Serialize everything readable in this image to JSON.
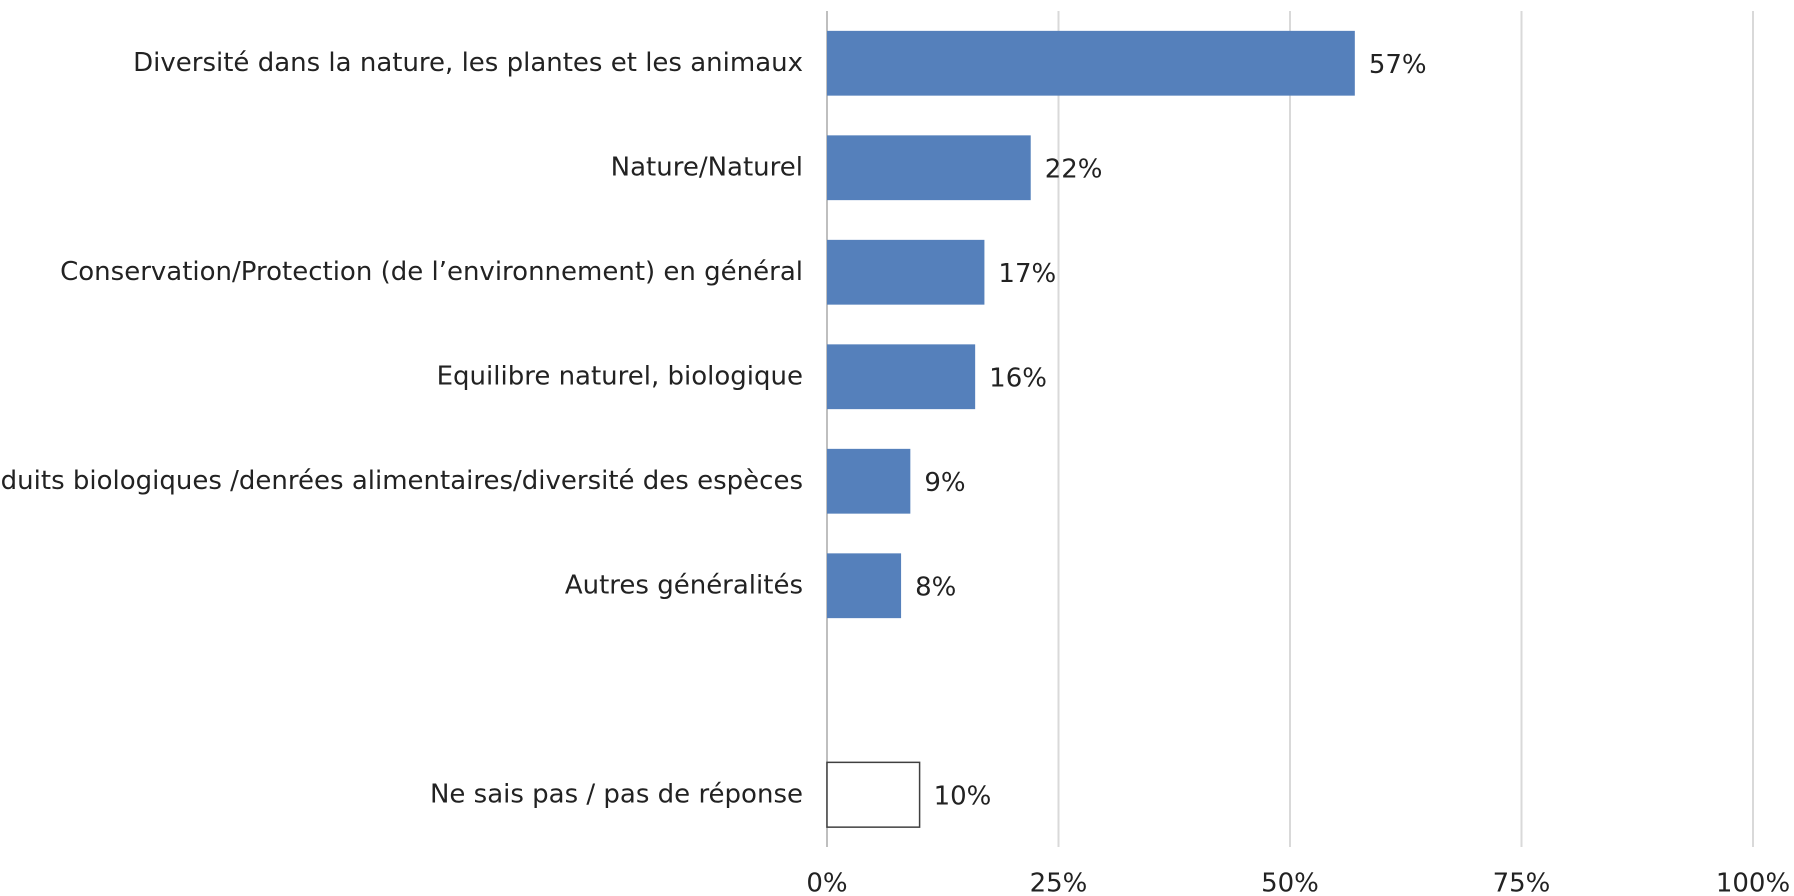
{
  "chart_data": {
    "type": "bar",
    "orientation": "horizontal",
    "categories": [
      "Diversité dans la nature, les plantes et les animaux",
      "Nature/Naturel",
      "Conservation/Protection (de l’environnement) en général",
      "Equilibre naturel, biologique",
      "Produits biologiques /denrées alimentaires/diversité des espèces",
      "Autres généralités",
      null,
      "Ne sais pas / pas de réponse"
    ],
    "values": [
      57,
      22,
      17,
      16,
      9,
      8,
      null,
      10
    ],
    "value_labels": [
      "57%",
      "22%",
      "17%",
      "16%",
      "9%",
      "8%",
      null,
      "10%"
    ],
    "colors": [
      "#5580bb",
      "#5580bb",
      "#5580bb",
      "#5580bb",
      "#5580bb",
      "#5580bb",
      null,
      "#ffffff"
    ],
    "xlim": [
      0,
      100
    ],
    "xticks": [
      {
        "value": 0,
        "label": "0%"
      },
      {
        "value": 25,
        "label": "25%"
      },
      {
        "value": 50,
        "label": "50%"
      },
      {
        "value": 75,
        "label": "75%"
      },
      {
        "value": 100,
        "label": "100%"
      }
    ],
    "grid": true
  }
}
